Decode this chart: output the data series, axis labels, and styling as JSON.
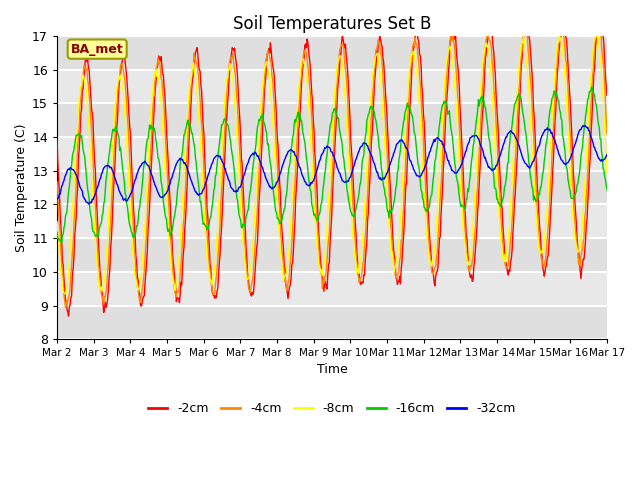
{
  "title": "Soil Temperatures Set B",
  "xlabel": "Time",
  "ylabel": "Soil Temperature (C)",
  "ylim": [
    8.0,
    17.0
  ],
  "yticks": [
    8.0,
    9.0,
    10.0,
    11.0,
    12.0,
    13.0,
    14.0,
    15.0,
    16.0,
    17.0
  ],
  "xtick_labels": [
    "Mar 2",
    "Mar 3",
    "Mar 4",
    "Mar 5",
    "Mar 6",
    "Mar 7",
    "Mar 8",
    "Mar 9",
    "Mar 10",
    "Mar 11",
    "Mar 12",
    "Mar 13",
    "Mar 14",
    "Mar 15",
    "Mar 16",
    "Mar 17"
  ],
  "series_labels": [
    "-2cm",
    "-4cm",
    "-8cm",
    "-16cm",
    "-32cm"
  ],
  "series_colors": [
    "#ff0000",
    "#ff8800",
    "#ffff00",
    "#00cc00",
    "#0000ff"
  ],
  "annotation_text": "BA_met",
  "annotation_box_color": "#ffff99",
  "annotation_box_edgecolor": "#999900",
  "annotation_text_color": "#880000",
  "plot_bg_color": "#e8e8e8",
  "grid_color": "#ffffff",
  "n_days": 15,
  "samples_per_day": 48,
  "base_mean": 12.5,
  "base_trend": 0.09,
  "amp2": 3.7,
  "amp4": 3.5,
  "amp8": 3.2,
  "amp16": 1.6,
  "amp32": 0.55,
  "phase2": 2.8,
  "phase4": 3.05,
  "phase8": 3.4,
  "phase16": 4.2,
  "phase32": 5.5,
  "figwidth": 6.4,
  "figheight": 4.8,
  "dpi": 100
}
